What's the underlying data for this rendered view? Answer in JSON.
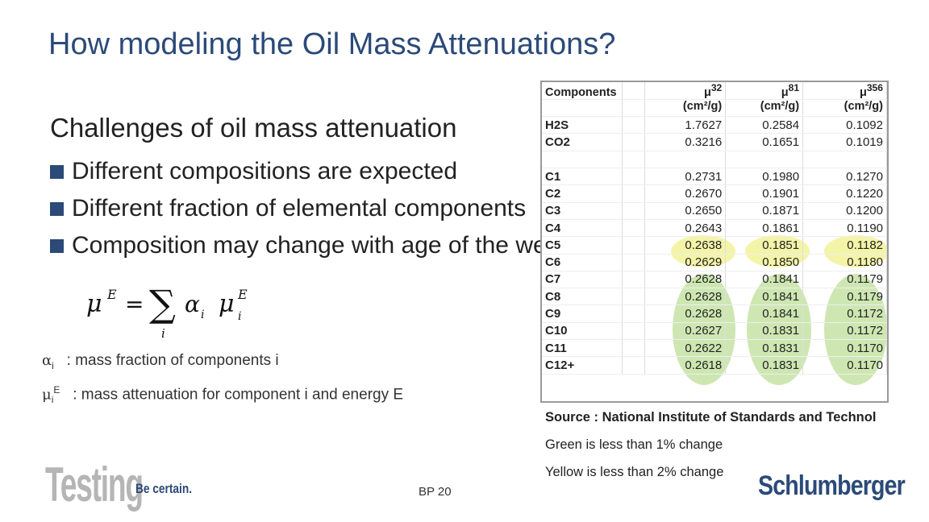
{
  "title": "How modeling the Oil Mass Attenuations?",
  "subtitle": "Challenges of oil mass attenuation",
  "bullets": [
    "Different compositions are expected",
    "Different fraction of elemental components",
    "Composition may change with age of the well"
  ],
  "definitions": {
    "alpha": {
      "symbol": "α",
      "sub": "i",
      "text": ": mass fraction of components i"
    },
    "mu": {
      "symbol": "μ",
      "sub": "i",
      "sup": "E",
      "text": ": mass attenuation for component i and energy E"
    }
  },
  "table": {
    "header_label": "Components",
    "units": "(cm²/g)",
    "columns": [
      "32",
      "81",
      "356"
    ],
    "mu_symbol": "μ",
    "group1": [
      {
        "name": "H2S",
        "v": [
          "1.7627",
          "0.2584",
          "0.1092"
        ]
      },
      {
        "name": "CO2",
        "v": [
          "0.3216",
          "0.1651",
          "0.1019"
        ]
      }
    ],
    "group2": [
      {
        "name": "C1",
        "v": [
          "0.2731",
          "0.1980",
          "0.1270"
        ]
      },
      {
        "name": "C2",
        "v": [
          "0.2670",
          "0.1901",
          "0.1220"
        ]
      },
      {
        "name": "C3",
        "v": [
          "0.2650",
          "0.1871",
          "0.1200"
        ]
      },
      {
        "name": "C4",
        "v": [
          "0.2643",
          "0.1861",
          "0.1190"
        ]
      },
      {
        "name": "C5",
        "v": [
          "0.2638",
          "0.1851",
          "0.1182"
        ]
      },
      {
        "name": "C6",
        "v": [
          "0.2629",
          "0.1850",
          "0.1180"
        ]
      },
      {
        "name": "C7",
        "v": [
          "0.2628",
          "0.1841",
          "0.1179"
        ]
      },
      {
        "name": "C8",
        "v": [
          "0.2628",
          "0.1841",
          "0.1179"
        ]
      },
      {
        "name": "C9",
        "v": [
          "0.2628",
          "0.1841",
          "0.1172"
        ]
      },
      {
        "name": "C10",
        "v": [
          "0.2627",
          "0.1831",
          "0.1172"
        ]
      },
      {
        "name": "C11",
        "v": [
          "0.2622",
          "0.1831",
          "0.1170"
        ]
      },
      {
        "name": "C12+",
        "v": [
          "0.2618",
          "0.1831",
          "0.1170"
        ]
      }
    ]
  },
  "source": "Source : National Institute of Standards and Technol",
  "notes": [
    "Green is less than 1% change",
    "Yellow is less than 2% change"
  ],
  "page_number": "BP 20",
  "logos": {
    "testing": "Testing",
    "tagline": "Be certain.",
    "company": "Schlumberger"
  },
  "colors": {
    "title": "#2b4a78",
    "green_highlight": "#c5e3a4",
    "yellow_highlight": "#f3f3a0"
  }
}
